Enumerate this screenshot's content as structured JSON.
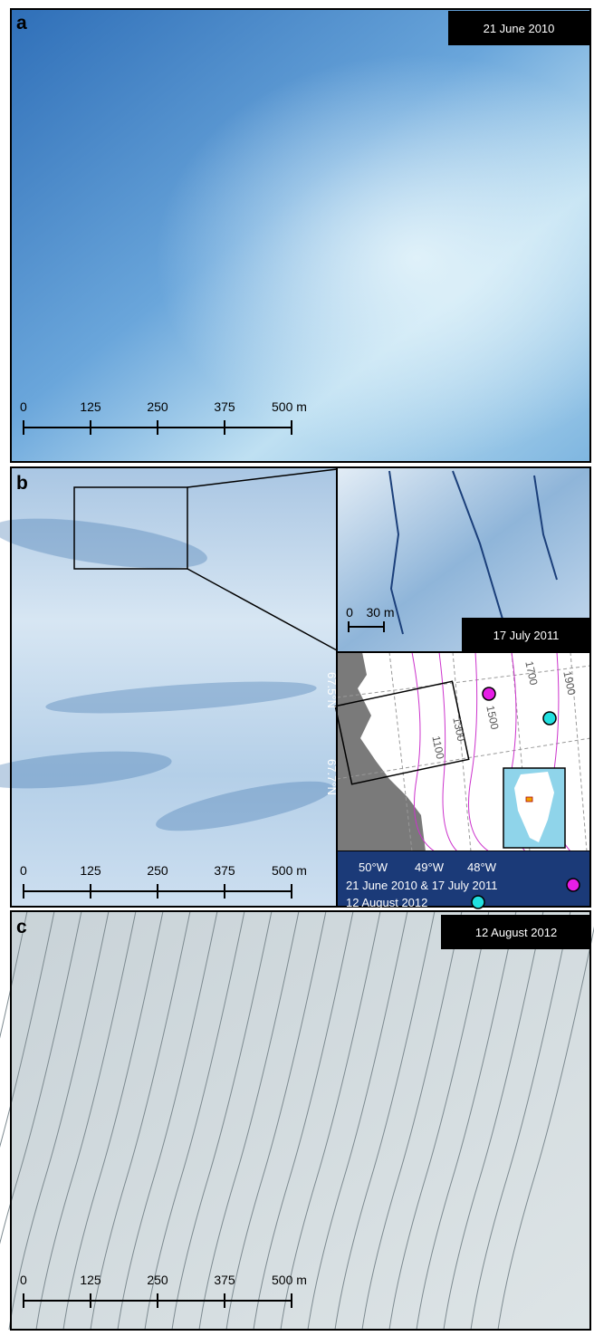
{
  "panels": [
    {
      "letter": "a",
      "date": "21 June 2010",
      "scale_labels": [
        "0",
        "125",
        "250",
        "375",
        "500 m"
      ]
    },
    {
      "letter": "b",
      "date": "17 July 2011",
      "scale_labels": [
        "0",
        "125",
        "250",
        "375",
        "500 m"
      ],
      "inset_scale_labels": [
        "0",
        "30 m"
      ],
      "map": {
        "latitude_labels": [
          "67.5°N",
          "67.7°N"
        ],
        "longitude_labels": [
          "50°W",
          "49°W",
          "48°W"
        ],
        "contour_labels": [
          "1100",
          "1300",
          "1500",
          "1700",
          "1900"
        ]
      },
      "legend": [
        {
          "label": "21 June 2010 & 17 July 2011",
          "color": "#e61ee6"
        },
        {
          "label": "12 August 2012",
          "color": "#22e0e0"
        }
      ]
    },
    {
      "letter": "c",
      "date": "12 August 2012",
      "scale_labels": [
        "0",
        "125",
        "250",
        "375",
        "500 m"
      ]
    }
  ]
}
